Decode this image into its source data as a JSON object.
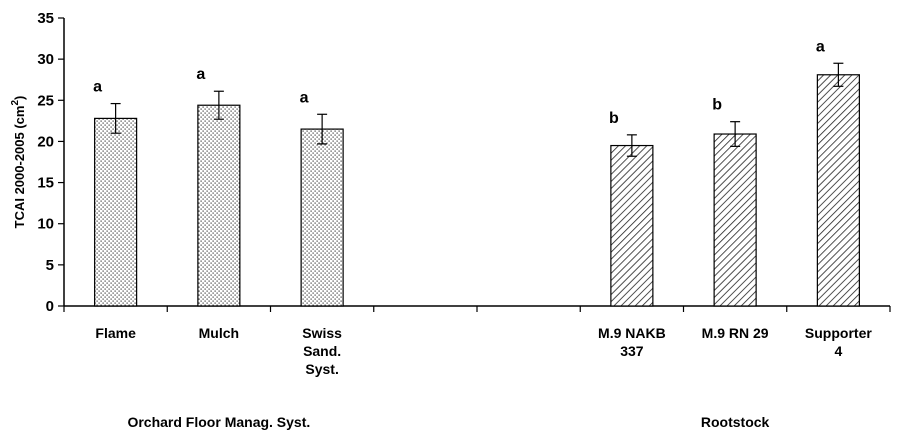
{
  "chart_data": {
    "type": "bar",
    "ylabel": "TCAI 2000-2005 (cm",
    "ylabel_sup": "2",
    "ylabel_close": ")",
    "ylim": [
      0,
      35
    ],
    "yticks": [
      "0",
      "5",
      "10",
      "15",
      "20",
      "25",
      "30",
      "35"
    ],
    "grid": false,
    "groups": [
      {
        "label": "Orchard Floor Manag. Syst.",
        "pattern": "dots",
        "bars": [
          {
            "category": [
              "Flame"
            ],
            "value": 22.8,
            "error": 1.8,
            "letter": "a"
          },
          {
            "category": [
              "Mulch"
            ],
            "value": 24.4,
            "error": 1.7,
            "letter": "a"
          },
          {
            "category": [
              "Swiss",
              "Sand.",
              "Syst."
            ],
            "value": 21.5,
            "error": 1.8,
            "letter": "a"
          }
        ]
      },
      {
        "label": "Rootstock",
        "pattern": "diagonal-hatch",
        "bars": [
          {
            "category": [
              "M.9 NAKB",
              "337"
            ],
            "value": 19.5,
            "error": 1.3,
            "letter": "b"
          },
          {
            "category": [
              "M.9 RN 29"
            ],
            "value": 20.9,
            "error": 1.5,
            "letter": "b"
          },
          {
            "category": [
              "Supporter",
              "4"
            ],
            "value": 28.1,
            "error": 1.4,
            "letter": "a"
          }
        ]
      }
    ]
  }
}
